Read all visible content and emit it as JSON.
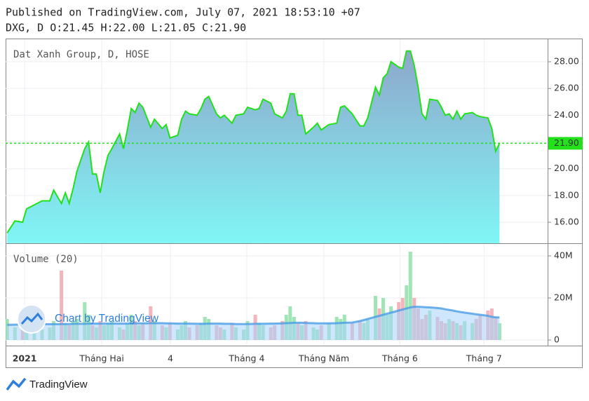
{
  "header": {
    "published": "Published on TradingView.com, July 07, 2021 18:53:10 +07",
    "quote": "DXG, D O:21.45 H:22.00 L:21.05 C:21.90"
  },
  "watermark": "Chart by TradingView",
  "footer": "TradingView",
  "chart_data": [
    {
      "type": "area",
      "title": "Dat Xanh Group, D, HOSE",
      "x": [
        0,
        2,
        4,
        5,
        7,
        9,
        11,
        12,
        14,
        15,
        16,
        17,
        18,
        20,
        21,
        22,
        23,
        24,
        25,
        26,
        27,
        29,
        30,
        31,
        32,
        33,
        34,
        35,
        37,
        38,
        40,
        41,
        42,
        44,
        45,
        46,
        47,
        49,
        50,
        51,
        52,
        54,
        55,
        56,
        58,
        59,
        61,
        62,
        64,
        65,
        66,
        68,
        69,
        71,
        72,
        73,
        74,
        75,
        76,
        77,
        79,
        80,
        81,
        83,
        85,
        86,
        87,
        89,
        91,
        92,
        93,
        95,
        96,
        97,
        98,
        99,
        101,
        102,
        103,
        104,
        105,
        106,
        107,
        108,
        109,
        111,
        112,
        113,
        114,
        115,
        116,
        117,
        118,
        120,
        121,
        122,
        124,
        125,
        126,
        127
      ],
      "values": [
        15.2,
        16.1,
        16.0,
        17.0,
        17.3,
        17.6,
        17.6,
        18.4,
        17.4,
        18.2,
        17.4,
        18.5,
        19.8,
        21.5,
        22.0,
        19.6,
        19.6,
        18.2,
        19.8,
        21.0,
        21.5,
        22.6,
        21.5,
        22.9,
        24.5,
        24.2,
        24.9,
        24.6,
        23.1,
        23.7,
        23.0,
        23.3,
        22.3,
        22.5,
        23.7,
        24.3,
        24.1,
        24.0,
        24.5,
        25.2,
        25.4,
        24.1,
        23.8,
        24.0,
        23.4,
        24.0,
        24.1,
        24.6,
        24.4,
        24.5,
        25.2,
        24.9,
        24.1,
        23.8,
        24.3,
        25.6,
        25.6,
        24.0,
        24.0,
        22.6,
        23.1,
        23.4,
        22.9,
        23.3,
        23.4,
        24.6,
        24.7,
        24.1,
        23.2,
        23.2,
        23.8,
        26.1,
        25.5,
        26.8,
        27.1,
        28.0,
        27.6,
        27.5,
        28.8,
        28.8,
        27.7,
        26.1,
        24.1,
        23.7,
        25.2,
        25.1,
        24.6,
        24.0,
        24.1,
        23.7,
        24.3,
        23.7,
        24.1,
        24.2,
        24.0,
        23.9,
        23.8,
        23.0,
        21.3,
        21.9
      ],
      "line_color": "#22e01a",
      "fill_colors": [
        "#8ea7cb",
        "#80f6f6"
      ],
      "last_value": {
        "value": 21.9,
        "label": "21.90"
      },
      "last_color": "#22e01a",
      "xlim": [
        -0.4,
        139.4
      ],
      "ylim": [
        14.43,
        29.73
      ],
      "yticks": [
        {
          "value": 16,
          "label": "16.00"
        },
        {
          "value": 18,
          "label": "18.00"
        },
        {
          "value": 20,
          "label": "20.00"
        },
        {
          "value": 22,
          "label": "22.00"
        },
        {
          "value": 24,
          "label": "24.00"
        },
        {
          "value": 26,
          "label": "26.00"
        },
        {
          "value": 28,
          "label": "28.00"
        }
      ],
      "grid": true
    },
    {
      "type": "volume",
      "title": "Volume (20)",
      "x": [
        0,
        2,
        4,
        5,
        7,
        9,
        11,
        12,
        14,
        15,
        16,
        17,
        18,
        20,
        21,
        22,
        23,
        24,
        25,
        26,
        27,
        29,
        30,
        31,
        32,
        33,
        34,
        35,
        37,
        38,
        40,
        41,
        42,
        44,
        45,
        46,
        47,
        49,
        50,
        51,
        52,
        54,
        55,
        56,
        58,
        59,
        61,
        62,
        64,
        65,
        66,
        68,
        69,
        71,
        72,
        73,
        74,
        75,
        76,
        77,
        79,
        80,
        81,
        83,
        85,
        86,
        87,
        89,
        91,
        92,
        93,
        95,
        96,
        97,
        98,
        99,
        101,
        102,
        103,
        104,
        105,
        106,
        107,
        108,
        109,
        111,
        112,
        113,
        114,
        115,
        116,
        117,
        118,
        120,
        121,
        122,
        124,
        125,
        126,
        127
      ],
      "values": [
        10000000,
        6000000,
        5000000,
        7000000,
        6000000,
        5000000,
        6000000,
        9000000,
        33000000,
        8000000,
        7000000,
        9000000,
        10000000,
        18000000,
        12000000,
        7000000,
        6000000,
        9000000,
        7000000,
        8000000,
        9000000,
        6000000,
        5000000,
        8000000,
        12000000,
        9000000,
        7000000,
        8000000,
        16000000,
        9000000,
        7000000,
        6000000,
        8000000,
        5000000,
        7000000,
        9000000,
        6000000,
        7000000,
        8000000,
        11000000,
        10000000,
        7000000,
        6000000,
        5000000,
        8000000,
        6000000,
        5000000,
        9000000,
        12000000,
        8000000,
        7000000,
        6000000,
        7000000,
        9000000,
        12000000,
        16000000,
        11000000,
        8000000,
        7000000,
        9000000,
        6000000,
        5000000,
        7000000,
        8000000,
        11000000,
        10000000,
        12000000,
        8000000,
        9000000,
        8000000,
        10000000,
        21000000,
        15000000,
        20000000,
        12000000,
        16000000,
        18000000,
        20000000,
        26000000,
        42000000,
        20000000,
        15000000,
        10000000,
        12000000,
        14000000,
        11000000,
        9000000,
        8000000,
        10000000,
        9000000,
        8000000,
        7000000,
        9000000,
        8000000,
        10000000,
        12000000,
        14000000,
        15000000,
        11000000,
        8000000
      ],
      "ma_values": [
        7200000,
        7300000,
        7400000,
        7400000,
        7500000,
        7500000,
        7500000,
        7500000,
        7600000,
        7600000,
        7600000,
        7700000,
        7700000,
        7700000,
        7800000,
        7800000,
        7800000,
        7800000,
        7800000,
        7800000,
        7800000,
        7800000,
        7800000,
        7800000,
        7900000,
        7900000,
        7900000,
        7900000,
        8000000,
        8000000,
        8000000,
        7900000,
        7900000,
        7800000,
        7800000,
        7800000,
        7800000,
        7700000,
        7700000,
        7700000,
        7800000,
        7800000,
        7800000,
        7700000,
        7700000,
        7600000,
        7600000,
        7600000,
        7700000,
        7700000,
        7700000,
        7800000,
        7800000,
        7900000,
        8000000,
        8100000,
        8200000,
        8200000,
        8200000,
        8100000,
        8000000,
        7900000,
        7900000,
        7900000,
        8000000,
        8100000,
        8200000,
        8300000,
        9000000,
        9500000,
        10000000,
        11000000,
        11500000,
        12000000,
        12500000,
        13000000,
        14000000,
        14500000,
        15000000,
        15500000,
        15800000,
        15800000,
        15700000,
        15600000,
        15500000,
        15200000,
        15000000,
        14600000,
        14300000,
        14000000,
        13600000,
        13300000,
        13000000,
        12500000,
        12200000,
        12000000,
        11500000,
        11000000,
        10800000,
        10700000
      ],
      "up_color": "#8ee0a8",
      "down_color": "#f2a7b0",
      "ma_color": "#4a9ee6",
      "ma_fill": "#a8d4fb",
      "xlim": [
        -0.4,
        139.4
      ],
      "ylim": [
        -2670000,
        46000000
      ],
      "yticks": [
        0,
        {
          "value": 20000000,
          "label": "20M"
        },
        {
          "value": 40000000,
          "label": "40M"
        }
      ],
      "xticks": [
        {
          "value": 4.5,
          "label": "2021"
        },
        {
          "value": 24.4,
          "label": "Tháng Hai"
        },
        {
          "value": 42.1,
          "label": "4"
        },
        {
          "value": 61.8,
          "label": "Tháng 4"
        },
        {
          "value": 81.7,
          "label": "Tháng Năm"
        },
        {
          "value": 101.3,
          "label": "Tháng 6"
        },
        {
          "value": 123.0,
          "label": "Tháng 7"
        }
      ],
      "grid": true
    }
  ]
}
